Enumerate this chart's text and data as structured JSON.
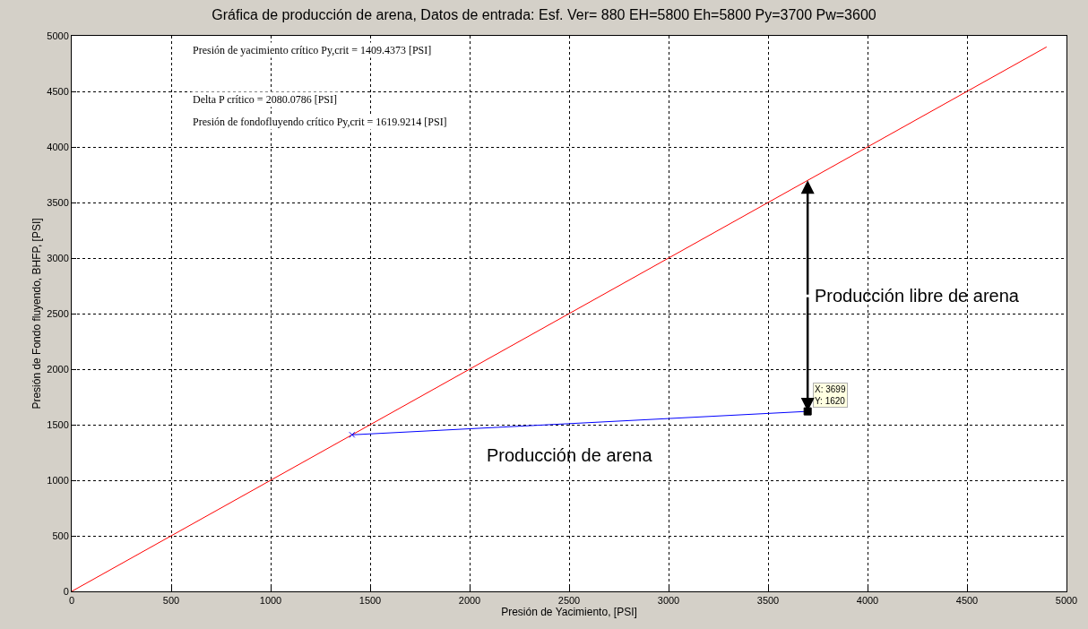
{
  "chart_data": {
    "type": "line",
    "title": "Gráfica de producción de arena, Datos de entrada: Esf. Ver= 880 EH=5800 Eh=5800 Py=3700 Pw=3600",
    "xlabel": "Presión de Yacimiento, [PSI]",
    "ylabel": "Presión de Fondo fluyendo, BHFP, [PSI]",
    "series": [
      {
        "color": "#ff0000",
        "x": [
          0,
          4900
        ],
        "values": [
          0,
          4900
        ]
      },
      {
        "color": "#0000ff",
        "x": [
          1409,
          3699
        ],
        "values": [
          1409,
          1620
        ]
      },
      {
        "type": "scatter",
        "marker": "cross",
        "color": "#0000ff",
        "x": [
          1409
        ],
        "values": [
          1409
        ]
      },
      {
        "type": "scatter",
        "marker": "square",
        "color": "#000000",
        "x": [
          3699
        ],
        "values": [
          1620
        ]
      }
    ],
    "xlim": [
      0,
      5000
    ],
    "ylim": [
      0,
      5000
    ],
    "xticks": [
      0,
      500,
      1000,
      1500,
      2000,
      2500,
      3000,
      3500,
      4000,
      4500,
      5000
    ],
    "yticks": [
      0,
      500,
      1000,
      1500,
      2000,
      2500,
      3000,
      3500,
      4000,
      4500,
      5000
    ],
    "grid": true,
    "line_style": "solid",
    "marker": "none",
    "annotations": [
      "Presión de yacimiento crítico Py,crit = 1409.4373 [PSI]",
      "Delta P crítico = 2080.0786 [PSI]",
      "Presión de fondofluyendo crítico Py,crit = 1619.9214 [PSI]",
      {
        "text": "X: 3699\nY: 1620",
        "x": 3699,
        "y": 1620
      },
      {
        "text": "Producción libre de arena",
        "x": 3699,
        "y": 3699
      },
      "Producción de arena"
    ]
  }
}
